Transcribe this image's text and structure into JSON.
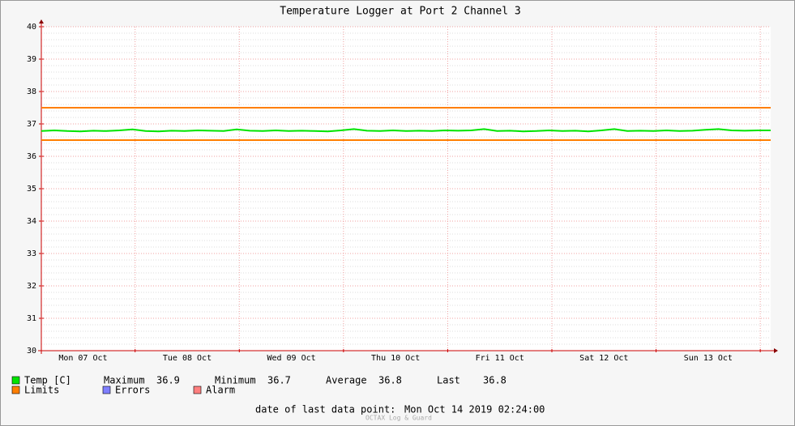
{
  "chart_data": {
    "type": "line",
    "title": "Temperature Logger at Port 2 Channel 3",
    "x": [
      "2019-10-07 02:24",
      "2019-10-07 05:24",
      "2019-10-07 08:24",
      "2019-10-07 11:24",
      "2019-10-07 14:24",
      "2019-10-07 17:24",
      "2019-10-07 20:24",
      "2019-10-07 23:24",
      "2019-10-08 02:24",
      "2019-10-08 05:24",
      "2019-10-08 08:24",
      "2019-10-08 11:24",
      "2019-10-08 14:24",
      "2019-10-08 17:24",
      "2019-10-08 20:24",
      "2019-10-08 23:24",
      "2019-10-09 02:24",
      "2019-10-09 05:24",
      "2019-10-09 08:24",
      "2019-10-09 11:24",
      "2019-10-09 14:24",
      "2019-10-09 17:24",
      "2019-10-09 20:24",
      "2019-10-09 23:24",
      "2019-10-10 02:24",
      "2019-10-10 05:24",
      "2019-10-10 08:24",
      "2019-10-10 11:24",
      "2019-10-10 14:24",
      "2019-10-10 17:24",
      "2019-10-10 20:24",
      "2019-10-10 23:24",
      "2019-10-11 02:24",
      "2019-10-11 05:24",
      "2019-10-11 08:24",
      "2019-10-11 11:24",
      "2019-10-11 14:24",
      "2019-10-11 17:24",
      "2019-10-11 20:24",
      "2019-10-11 23:24",
      "2019-10-12 02:24",
      "2019-10-12 05:24",
      "2019-10-12 08:24",
      "2019-10-12 11:24",
      "2019-10-12 14:24",
      "2019-10-12 17:24",
      "2019-10-12 20:24",
      "2019-10-12 23:24",
      "2019-10-13 02:24",
      "2019-10-13 05:24",
      "2019-10-13 08:24",
      "2019-10-13 11:24",
      "2019-10-13 14:24",
      "2019-10-13 17:24",
      "2019-10-13 20:24",
      "2019-10-13 23:24",
      "2019-10-14 02:24"
    ],
    "series": [
      {
        "name": "Temp [C]",
        "color": "#00e400",
        "values": [
          36.78,
          36.8,
          36.78,
          36.77,
          36.79,
          36.78,
          36.8,
          36.83,
          36.78,
          36.77,
          36.79,
          36.78,
          36.8,
          36.79,
          36.78,
          36.83,
          36.79,
          36.78,
          36.8,
          36.78,
          36.79,
          36.78,
          36.77,
          36.8,
          36.84,
          36.79,
          36.78,
          36.8,
          36.78,
          36.79,
          36.78,
          36.8,
          36.79,
          36.8,
          36.84,
          36.78,
          36.79,
          36.77,
          36.78,
          36.8,
          36.78,
          36.79,
          36.77,
          36.8,
          36.84,
          36.78,
          36.79,
          36.78,
          36.8,
          36.78,
          36.79,
          36.82,
          36.84,
          36.8,
          36.79,
          36.8,
          36.8
        ]
      }
    ],
    "limits": {
      "name": "Limits",
      "color": "#ff7f00",
      "values": [
        37.5,
        36.5
      ]
    },
    "legend_extra": [
      {
        "name": "Errors",
        "color": "#7f7fff"
      },
      {
        "name": "Alarm",
        "color": "#ff7f7f"
      }
    ],
    "stats": [
      {
        "label": "Maximum",
        "value": 36.9
      },
      {
        "label": "Minimum",
        "value": 36.7
      },
      {
        "label": "Average",
        "value": 36.8
      },
      {
        "label": "Last",
        "value": 36.8
      }
    ],
    "ylim": [
      30,
      40
    ],
    "yticks": [
      30,
      31,
      32,
      33,
      34,
      35,
      36,
      37,
      38,
      39,
      40
    ],
    "minor_grid_step": 0.2,
    "xlim": [
      "2019-10-07 02:24",
      "2019-10-14 02:24"
    ],
    "xticks": [
      {
        "value": "2019-10-07 12:00",
        "label": "Mon 07 Oct"
      },
      {
        "value": "2019-10-08 12:00",
        "label": "Tue 08 Oct"
      },
      {
        "value": "2019-10-09 12:00",
        "label": "Wed 09 Oct"
      },
      {
        "value": "2019-10-10 12:00",
        "label": "Thu 10 Oct"
      },
      {
        "value": "2019-10-11 12:00",
        "label": "Fri 11 Oct"
      },
      {
        "value": "2019-10-12 12:00",
        "label": "Sat 12 Oct"
      },
      {
        "value": "2019-10-13 12:00",
        "label": "Sun 13 Oct"
      }
    ],
    "xgrid": [
      "2019-10-08 00:00",
      "2019-10-09 00:00",
      "2019-10-10 00:00",
      "2019-10-11 00:00",
      "2019-10-12 00:00",
      "2019-10-13 00:00",
      "2019-10-14 00:00"
    ],
    "grid": true,
    "footer": {
      "label": "date of last data point:",
      "value": "Mon Oct 14 2019 02:24:00"
    },
    "brand": "OCTAX Log & Guard"
  }
}
